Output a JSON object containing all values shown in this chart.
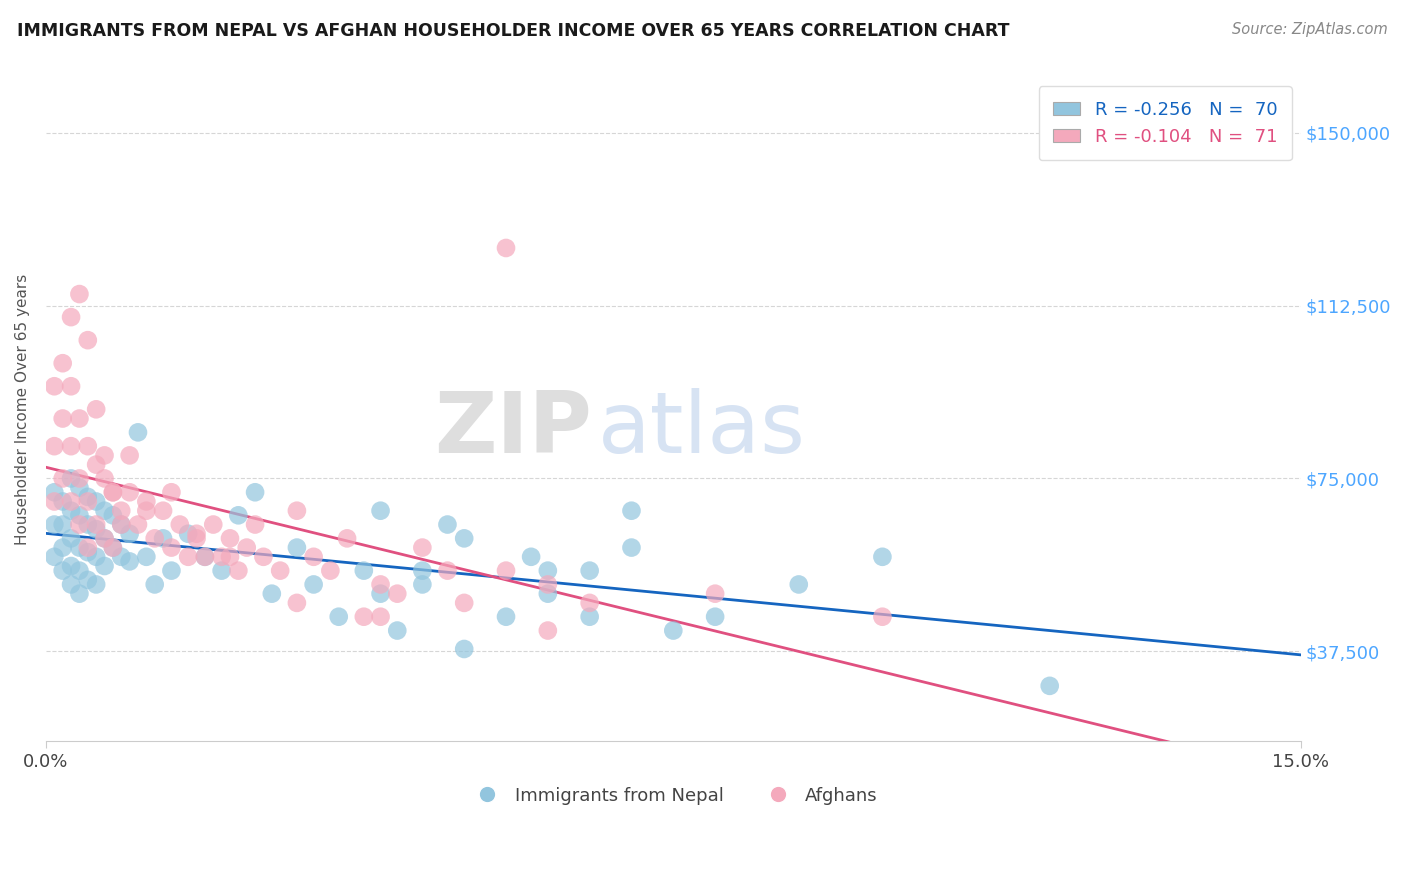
{
  "title": "IMMIGRANTS FROM NEPAL VS AFGHAN HOUSEHOLDER INCOME OVER 65 YEARS CORRELATION CHART",
  "source_text": "Source: ZipAtlas.com",
  "ylabel": "Householder Income Over 65 years",
  "xlim": [
    0.0,
    0.15
  ],
  "ylim": [
    18000,
    162000
  ],
  "yticks": [
    37500,
    75000,
    112500,
    150000
  ],
  "ytick_labels": [
    "$37,500",
    "$75,000",
    "$112,500",
    "$150,000"
  ],
  "xticks": [
    0.0,
    0.15
  ],
  "xtick_labels": [
    "0.0%",
    "15.0%"
  ],
  "nepal_color": "#92c5de",
  "afghan_color": "#f4a9bc",
  "nepal_line_color": "#1565c0",
  "afghan_line_color": "#e05080",
  "nepal_R": -0.256,
  "nepal_N": 70,
  "afghan_R": -0.104,
  "afghan_N": 71,
  "watermark_zip": "ZIP",
  "watermark_atlas": "atlas",
  "legend_label_nepal": "Immigrants from Nepal",
  "legend_label_afghan": "Afghans",
  "background_color": "#ffffff",
  "grid_color": "#cccccc",
  "nepal_x": [
    0.001,
    0.001,
    0.001,
    0.002,
    0.002,
    0.002,
    0.002,
    0.003,
    0.003,
    0.003,
    0.003,
    0.003,
    0.004,
    0.004,
    0.004,
    0.004,
    0.004,
    0.005,
    0.005,
    0.005,
    0.005,
    0.006,
    0.006,
    0.006,
    0.006,
    0.007,
    0.007,
    0.007,
    0.008,
    0.008,
    0.009,
    0.009,
    0.01,
    0.01,
    0.011,
    0.012,
    0.013,
    0.014,
    0.015,
    0.017,
    0.019,
    0.021,
    0.023,
    0.025,
    0.027,
    0.03,
    0.032,
    0.035,
    0.038,
    0.04,
    0.042,
    0.045,
    0.048,
    0.05,
    0.055,
    0.058,
    0.06,
    0.065,
    0.07,
    0.075,
    0.04,
    0.045,
    0.05,
    0.06,
    0.065,
    0.07,
    0.08,
    0.09,
    0.1,
    0.12
  ],
  "nepal_y": [
    72000,
    65000,
    58000,
    70000,
    65000,
    60000,
    55000,
    75000,
    68000,
    62000,
    56000,
    52000,
    73000,
    67000,
    60000,
    55000,
    50000,
    71000,
    65000,
    59000,
    53000,
    70000,
    64000,
    58000,
    52000,
    68000,
    62000,
    56000,
    67000,
    60000,
    65000,
    58000,
    63000,
    57000,
    85000,
    58000,
    52000,
    62000,
    55000,
    63000,
    58000,
    55000,
    67000,
    72000,
    50000,
    60000,
    52000,
    45000,
    55000,
    68000,
    42000,
    55000,
    65000,
    62000,
    45000,
    58000,
    50000,
    55000,
    68000,
    42000,
    50000,
    52000,
    38000,
    55000,
    45000,
    60000,
    45000,
    52000,
    58000,
    30000
  ],
  "afghan_x": [
    0.001,
    0.001,
    0.001,
    0.002,
    0.002,
    0.002,
    0.003,
    0.003,
    0.003,
    0.003,
    0.004,
    0.004,
    0.004,
    0.005,
    0.005,
    0.005,
    0.006,
    0.006,
    0.007,
    0.007,
    0.008,
    0.008,
    0.009,
    0.01,
    0.011,
    0.012,
    0.013,
    0.014,
    0.015,
    0.016,
    0.017,
    0.018,
    0.019,
    0.02,
    0.021,
    0.022,
    0.023,
    0.024,
    0.025,
    0.026,
    0.028,
    0.03,
    0.032,
    0.034,
    0.036,
    0.038,
    0.04,
    0.042,
    0.045,
    0.048,
    0.05,
    0.055,
    0.06,
    0.065,
    0.004,
    0.005,
    0.006,
    0.007,
    0.008,
    0.009,
    0.01,
    0.012,
    0.015,
    0.018,
    0.022,
    0.03,
    0.04,
    0.06,
    0.08,
    0.1,
    0.055
  ],
  "afghan_y": [
    95000,
    82000,
    70000,
    100000,
    88000,
    75000,
    110000,
    95000,
    82000,
    70000,
    88000,
    75000,
    65000,
    82000,
    70000,
    60000,
    78000,
    65000,
    75000,
    62000,
    72000,
    60000,
    68000,
    72000,
    65000,
    70000,
    62000,
    68000,
    60000,
    65000,
    58000,
    63000,
    58000,
    65000,
    58000,
    62000,
    55000,
    60000,
    65000,
    58000,
    55000,
    68000,
    58000,
    55000,
    62000,
    45000,
    52000,
    50000,
    60000,
    55000,
    48000,
    55000,
    52000,
    48000,
    115000,
    105000,
    90000,
    80000,
    72000,
    65000,
    80000,
    68000,
    72000,
    62000,
    58000,
    48000,
    45000,
    42000,
    50000,
    45000,
    125000
  ]
}
